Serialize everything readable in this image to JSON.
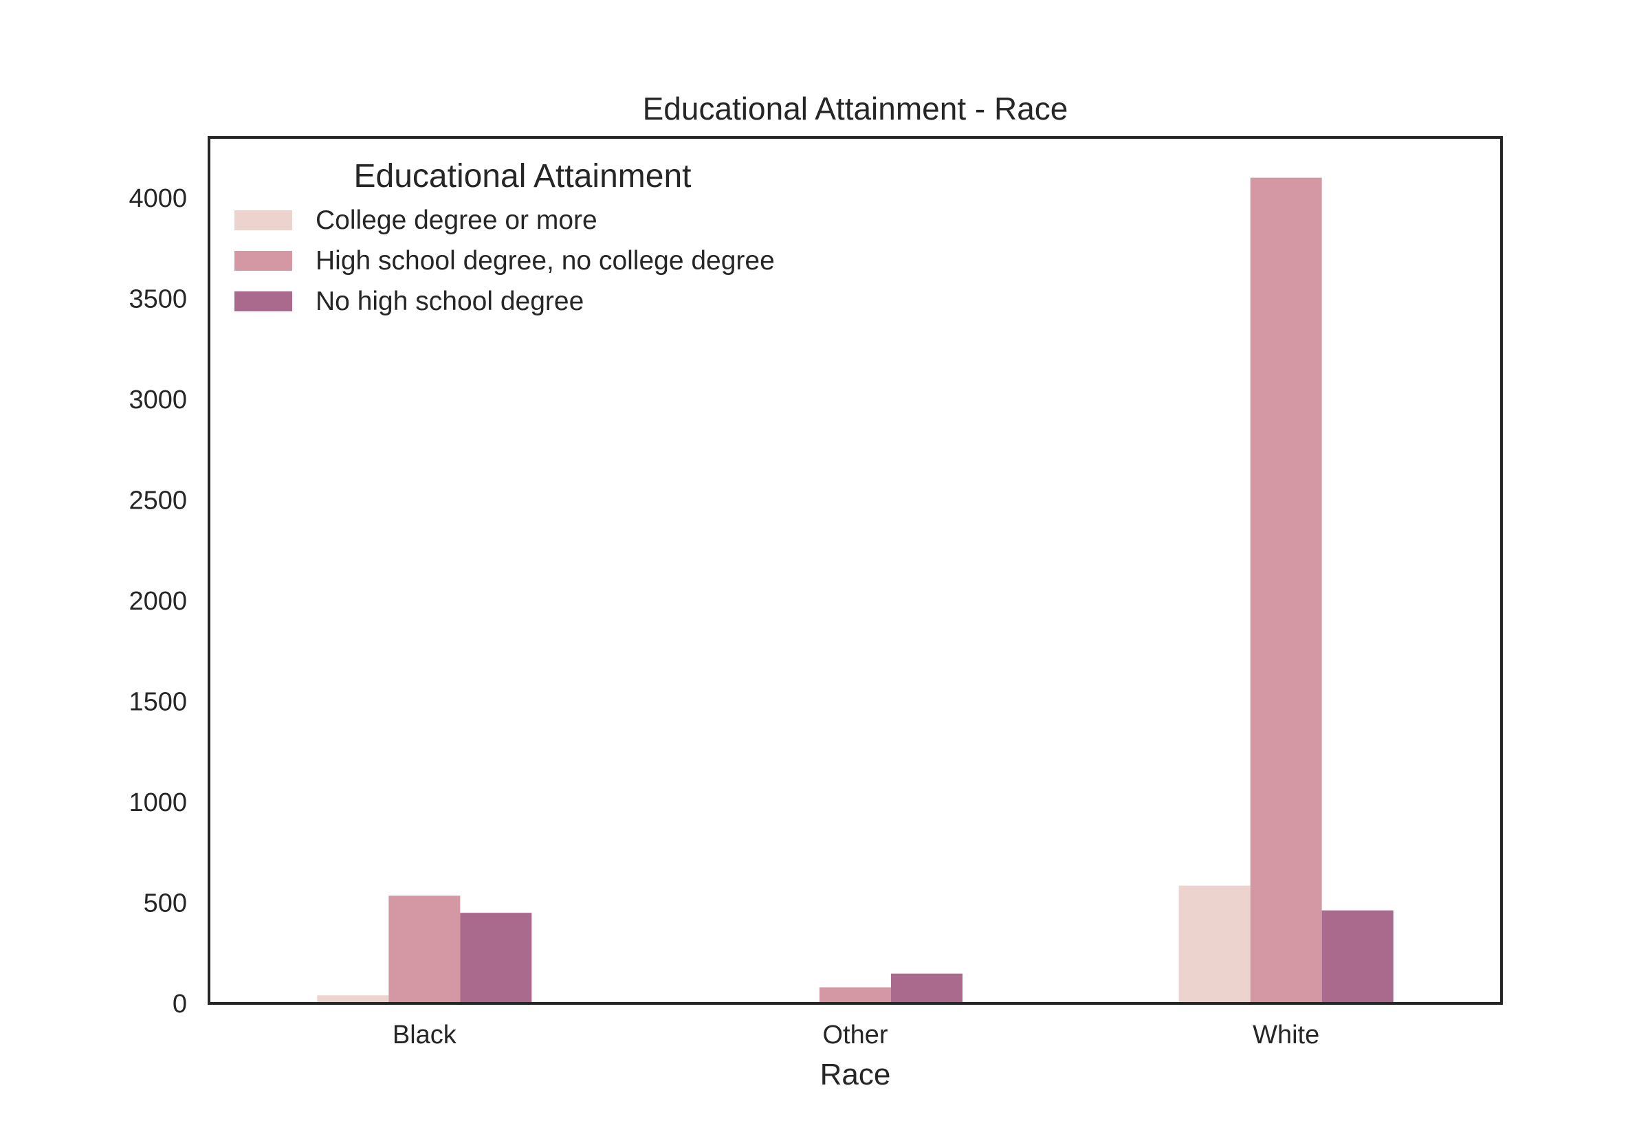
{
  "chart_data": {
    "type": "bar",
    "title": "Educational Attainment - Race",
    "xlabel": "Race",
    "ylabel": "",
    "categories": [
      "Black",
      "Other",
      "White"
    ],
    "series": [
      {
        "name": "College degree or more",
        "values": [
          40,
          0,
          585
        ],
        "color": "#ecd3cd"
      },
      {
        "name": "High school degree, no college degree",
        "values": [
          535,
          80,
          4100
        ],
        "color": "#d498a5"
      },
      {
        "name": "No high school degree",
        "values": [
          450,
          148,
          462
        ],
        "color": "#aa6a8d"
      }
    ],
    "ylim": [
      0,
      4300
    ],
    "yticks": [
      0,
      500,
      1000,
      1500,
      2000,
      2500,
      3000,
      3500,
      4000
    ],
    "yticklabels": [
      "0",
      "500",
      "1000",
      "1500",
      "2000",
      "2500",
      "3000",
      "3500",
      "4000"
    ],
    "legend": {
      "title": "Educational Attainment",
      "placement": "top-left"
    },
    "grid": false
  }
}
